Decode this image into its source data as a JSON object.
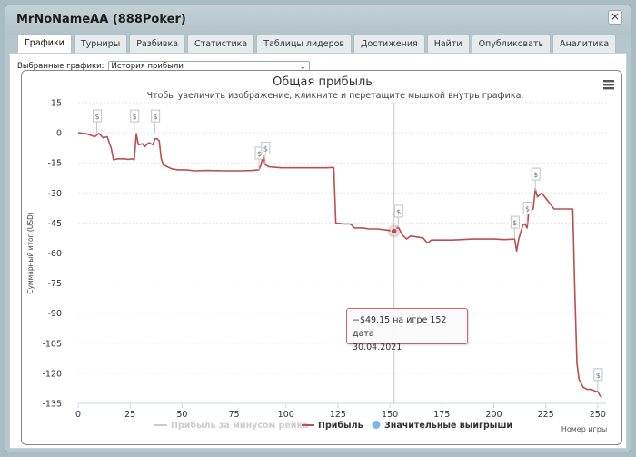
{
  "window": {
    "title": "MrNoNameAA (888Poker)",
    "close_label": "×"
  },
  "tabs": [
    {
      "label": "Графики",
      "active": true
    },
    {
      "label": "Турниры"
    },
    {
      "label": "Разбивка"
    },
    {
      "label": "Статистика"
    },
    {
      "label": "Таблицы лидеров"
    },
    {
      "label": "Достижения"
    },
    {
      "label": "Найти"
    },
    {
      "label": "Опубликовать"
    },
    {
      "label": "Аналитика"
    }
  ],
  "selector": {
    "label": "Выбранные графики:",
    "value": "История прибыли"
  },
  "tooltip": {
    "line1": "−$49.15 на игре 152 дата",
    "line2": "30.04.2021"
  },
  "colors": {
    "profit_line": "#b85052",
    "marker": "#c0c4c8",
    "legend_dot": "#7cb5ec",
    "gridline": "#e6e6e6"
  },
  "chart_data": {
    "type": "line",
    "title": "Общая прибыль",
    "subtitle": "Чтобы увеличить изображение, кликните и перетащите мышкой внутрь графика.",
    "xlabel": "Номер игры",
    "ylabel": "Суммарный итог (USD)",
    "xlim": [
      0,
      254
    ],
    "ylim": [
      -135,
      15
    ],
    "x_ticks": [
      0,
      25,
      50,
      75,
      100,
      125,
      150,
      175,
      200,
      225,
      250
    ],
    "y_ticks": [
      15,
      0,
      -15,
      -30,
      -45,
      -60,
      -75,
      -90,
      -105,
      -120,
      -135
    ],
    "legend_position": "bottom",
    "menu_icon": "hamburger-menu-icon",
    "series": [
      {
        "name": "Прибыль за минусом рейка",
        "visible": false,
        "points": []
      },
      {
        "name": "Прибыль",
        "visible": true,
        "points": [
          [
            0,
            0
          ],
          [
            4,
            -0.5
          ],
          [
            8,
            -2
          ],
          [
            10,
            -0.3
          ],
          [
            12,
            -2.5
          ],
          [
            14,
            -2
          ],
          [
            16,
            -8
          ],
          [
            17,
            -13.5
          ],
          [
            19,
            -13
          ],
          [
            22,
            -13
          ],
          [
            24,
            -13.3
          ],
          [
            26,
            -13
          ],
          [
            27,
            -13.5
          ],
          [
            28,
            -0.5
          ],
          [
            29,
            -6
          ],
          [
            31,
            -5.5
          ],
          [
            32,
            -7
          ],
          [
            34,
            -5
          ],
          [
            36,
            -6
          ],
          [
            37,
            -3
          ],
          [
            38,
            -3
          ],
          [
            39,
            -4
          ],
          [
            40,
            -13
          ],
          [
            41,
            -16
          ],
          [
            43,
            -17
          ],
          [
            45,
            -18
          ],
          [
            48,
            -18.5
          ],
          [
            52,
            -18.5
          ],
          [
            56,
            -19
          ],
          [
            62,
            -18.8
          ],
          [
            70,
            -19
          ],
          [
            78,
            -19
          ],
          [
            84,
            -18.8
          ],
          [
            87,
            -18.5
          ],
          [
            88,
            -16
          ],
          [
            89,
            -11
          ],
          [
            90,
            -16
          ],
          [
            92,
            -17
          ],
          [
            98,
            -17.5
          ],
          [
            106,
            -17.5
          ],
          [
            114,
            -17.5
          ],
          [
            120,
            -17.5
          ],
          [
            122,
            -17.3
          ],
          [
            123,
            -17.5
          ],
          [
            124,
            -45
          ],
          [
            128,
            -45.5
          ],
          [
            131,
            -45.5
          ],
          [
            133,
            -47.5
          ],
          [
            137,
            -47.5
          ],
          [
            140,
            -48
          ],
          [
            144,
            -48
          ],
          [
            148,
            -48.5
          ],
          [
            152,
            -49.15
          ],
          [
            154,
            -47
          ],
          [
            156,
            -51
          ],
          [
            158,
            -53
          ],
          [
            160,
            -51.5
          ],
          [
            163,
            -52
          ],
          [
            166,
            -52.5
          ],
          [
            168,
            -55
          ],
          [
            170,
            -53.5
          ],
          [
            175,
            -53.5
          ],
          [
            180,
            -53.5
          ],
          [
            190,
            -53
          ],
          [
            200,
            -53
          ],
          [
            205,
            -53.3
          ],
          [
            210,
            -53
          ],
          [
            211,
            -59
          ],
          [
            212,
            -53
          ],
          [
            214,
            -46
          ],
          [
            215,
            -45.5
          ],
          [
            216,
            -47.5
          ],
          [
            217,
            -38
          ],
          [
            218,
            -38.5
          ],
          [
            219,
            -38
          ],
          [
            220,
            -28
          ],
          [
            221,
            -32
          ],
          [
            223,
            -30
          ],
          [
            226,
            -34
          ],
          [
            229,
            -38
          ],
          [
            234,
            -38
          ],
          [
            237,
            -38
          ],
          [
            238,
            -38
          ],
          [
            239,
            -80
          ],
          [
            240,
            -115
          ],
          [
            241,
            -123
          ],
          [
            243,
            -127
          ],
          [
            245,
            -128
          ],
          [
            247,
            -128
          ],
          [
            249,
            -129
          ],
          [
            250,
            -129
          ],
          [
            251,
            -131
          ],
          [
            252,
            -132
          ]
        ]
      },
      {
        "name": "Значительные выигрыши",
        "visible": true,
        "marker_label": "$",
        "points": [
          [
            9,
            0
          ],
          [
            27,
            0
          ],
          [
            37,
            0
          ],
          [
            87,
            -18.5
          ],
          [
            90,
            -16
          ],
          [
            154,
            -47.5
          ],
          [
            210,
            -53
          ],
          [
            216,
            -46
          ],
          [
            220,
            -29
          ],
          [
            250,
            -129
          ]
        ]
      }
    ],
    "hover_point": [
      152,
      -49.15
    ]
  }
}
